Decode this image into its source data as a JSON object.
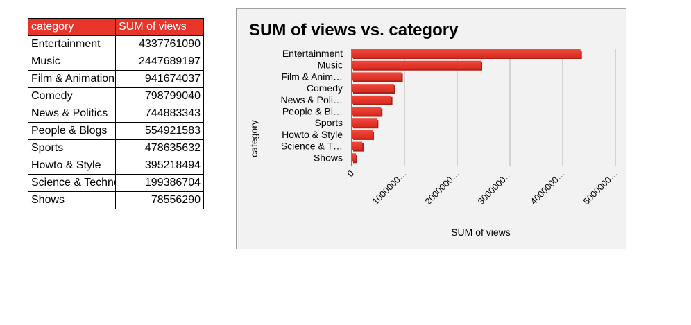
{
  "table": {
    "headers": [
      "category",
      "SUM of views"
    ],
    "rows": [
      {
        "category": "Entertainment",
        "views": "4337761090"
      },
      {
        "category": "Music",
        "views": "2447689197"
      },
      {
        "category": "Film & Animation",
        "views": "941674037"
      },
      {
        "category": "Comedy",
        "views": "798799040"
      },
      {
        "category": "News & Politics",
        "views": "744883343"
      },
      {
        "category": "People & Blogs",
        "views": "554921583"
      },
      {
        "category": "Sports",
        "views": "478635632"
      },
      {
        "category": "Howto & Style",
        "views": "395218494"
      },
      {
        "category": "Science & Technology",
        "views": "199386704"
      },
      {
        "category": "Shows",
        "views": "78556290"
      }
    ]
  },
  "colors": {
    "header_bg": "#e8352a",
    "bar": "#e8352a",
    "bar_dark": "#a8221a",
    "panel_bg": "#f2f2f2",
    "grid": "#c8c8c8"
  },
  "chart_data": {
    "type": "bar",
    "orientation": "horizontal",
    "title": "SUM of views vs. category",
    "xlabel": "SUM of views",
    "ylabel": "category",
    "categories": [
      "Entertainment",
      "Music",
      "Film & Animation",
      "Comedy",
      "News & Politics",
      "People & Blogs",
      "Sports",
      "Howto & Style",
      "Science & Technology",
      "Shows"
    ],
    "category_labels": [
      "Entertainment",
      "Music",
      "Film & Anim…",
      "Comedy",
      "News & Poli…",
      "People & Bl…",
      "Sports",
      "Howto & Style",
      "Science & T…",
      "Shows"
    ],
    "values": [
      4337761090,
      2447689197,
      941674037,
      798799040,
      744883343,
      554921583,
      478635632,
      395218494,
      199386704,
      78556290
    ],
    "xlim": [
      0,
      5000000000
    ],
    "xticks": [
      0,
      1000000000,
      2000000000,
      3000000000,
      4000000000,
      5000000000
    ],
    "xtick_labels": [
      "0",
      "1000000…",
      "2000000…",
      "3000000…",
      "4000000…",
      "5000000…"
    ],
    "grid": true,
    "legend": "none"
  }
}
